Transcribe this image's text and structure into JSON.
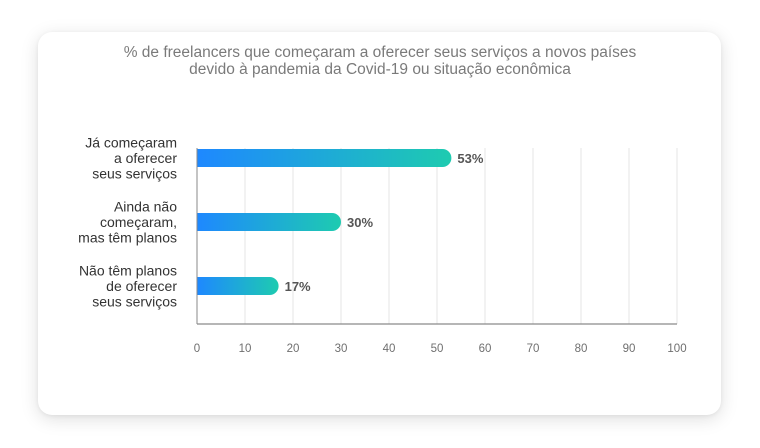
{
  "chart_data": {
    "type": "bar",
    "orientation": "horizontal",
    "title_lines": [
      "% de freelancers que começaram a oferecer seus serviços a novos países",
      "devido à pandemia da Covid-19 ou situação econômica"
    ],
    "categories": [
      [
        "Já começaram",
        "a oferecer",
        "seus serviços"
      ],
      [
        "Ainda não",
        "começaram,",
        "mas têm planos"
      ],
      [
        "Não têm planos",
        "de oferecer",
        "seus serviços"
      ]
    ],
    "values": [
      53,
      30,
      17
    ],
    "value_labels": [
      "53%",
      "30%",
      "17%"
    ],
    "xlim": [
      0,
      100
    ],
    "xticks": [
      "0",
      "10",
      "20",
      "30",
      "40",
      "50",
      "60",
      "70",
      "80",
      "90",
      "100"
    ],
    "grid": true,
    "colors": {
      "bar_start": "#1e88ff",
      "bar_end": "#1ecbb0",
      "grid": "#e4e4e4",
      "axis": "#8a8a8a"
    }
  }
}
